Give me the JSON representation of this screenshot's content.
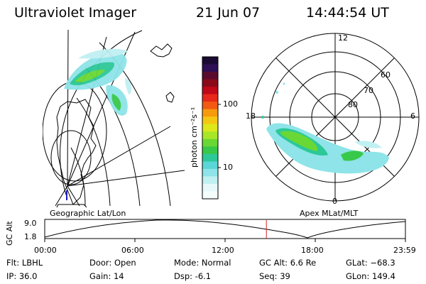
{
  "header": {
    "instrument": "Ultraviolet Imager",
    "date": "21 Jun 07",
    "time": "14:44:54 UT"
  },
  "left_map": {
    "caption": "Geographic Lat/Lon"
  },
  "right_map": {
    "caption": "Apex  MLat/MLT",
    "mlt_labels": [
      "12",
      "18",
      "6",
      "0"
    ],
    "lat_labels": [
      "60",
      "70",
      "80"
    ]
  },
  "colorbar": {
    "unit_label": "photon cm⁻²s⁻¹",
    "ticks": [
      "100",
      "10"
    ],
    "colors": [
      "#1a0a33",
      "#2e0e55",
      "#5a0c2e",
      "#8a0a1a",
      "#c00818",
      "#e8281a",
      "#f25a12",
      "#f79a0c",
      "#f4c812",
      "#dce81a",
      "#a8e628",
      "#6ad834",
      "#38c84a",
      "#2cc898",
      "#5ad6d6",
      "#8ee4e8",
      "#c0f0f2",
      "#e6f8fa",
      "#f4fcfd"
    ]
  },
  "altitude_plot": {
    "ylabel": "GC Alt",
    "y_ticks": [
      "9.0",
      "1.8"
    ],
    "x_ticks": [
      "00:00",
      "06:00",
      "12:00",
      "18:00",
      "23:59"
    ],
    "current_time_hours": 14.75,
    "marker_color": "#d42020"
  },
  "info": {
    "flt": "Flt: LBHL",
    "ip": "IP: 36.0",
    "door": "Door: Open",
    "gain": "Gain: 14",
    "mode": "Mode: Normal",
    "dsp": "Dsp:    -6.1",
    "gcalt": "GC Alt: 6.6 Re",
    "seq": "Seq: 39",
    "glat": "GLat: −68.3",
    "glon": "GLon: 149.4"
  }
}
